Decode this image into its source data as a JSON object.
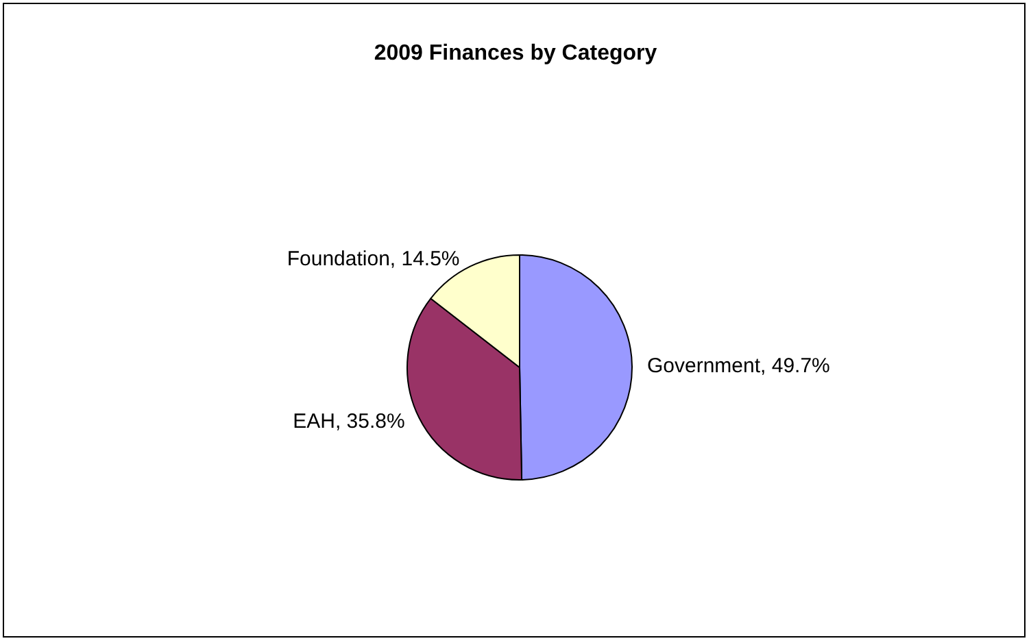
{
  "chart_data": {
    "type": "pie",
    "title": "2009 Finances by Category",
    "categories": [
      "Government",
      "EAH",
      "Foundation"
    ],
    "values": [
      49.7,
      35.8,
      14.5
    ],
    "value_labels": [
      "49.7%",
      "35.8%",
      "14.5%"
    ],
    "colors": [
      "#9999ff",
      "#993366",
      "#ffffcc"
    ],
    "legend": false
  }
}
